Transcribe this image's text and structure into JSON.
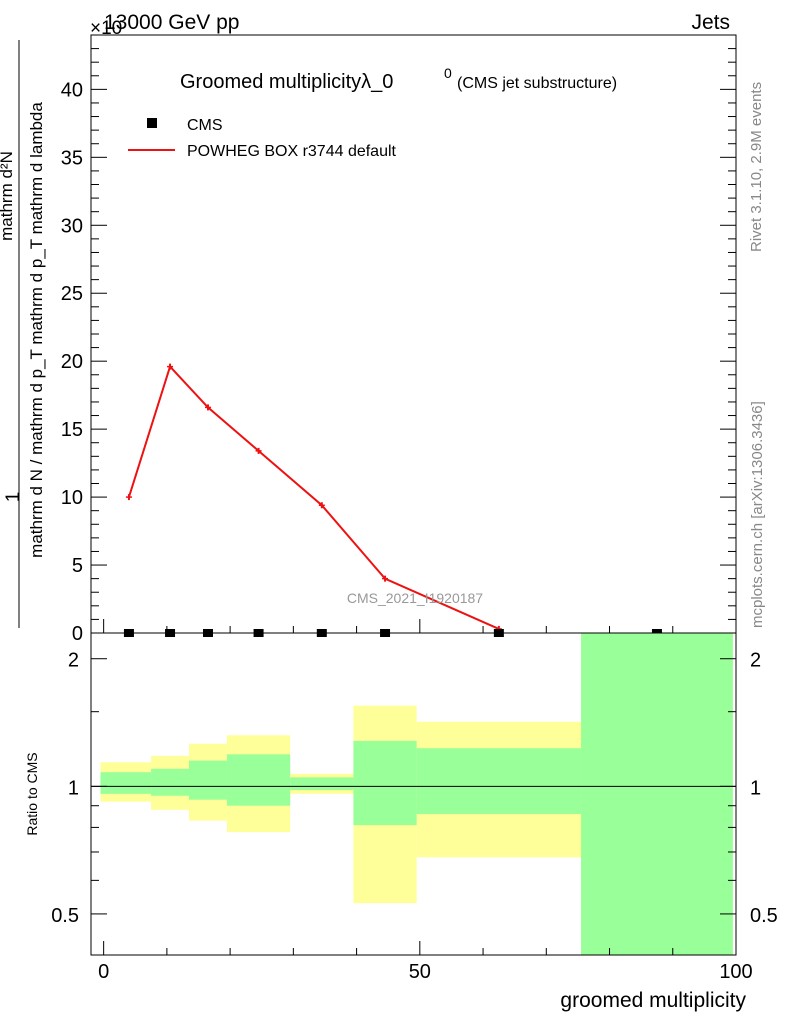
{
  "header": {
    "left": "13000 GeV pp",
    "right": "Jets",
    "exponent": "×10"
  },
  "side_labels": {
    "rivet": "Rivet 3.1.10,  2.9M events",
    "mcplots": "mcplots.cern.ch [arXiv:1306.3436]"
  },
  "colors": {
    "mc_line": "#ee1111",
    "band_inner": "#99ff99",
    "band_outer": "#ffff99",
    "data_marker": "#000000"
  },
  "chart_data": [
    {
      "type": "line",
      "panel": "main",
      "title": "Groomed multiplicityλ_0",
      "title_superscript": "0",
      "subtitle": "(CMS jet substructure)",
      "watermark": "CMS_2021_I1920187",
      "ylabel_numerator": "1",
      "ylabel_fraction_num": "mathrm d²N",
      "ylabel_fraction_den": "mathrm d N / mathrm d p_T mathrm d p_T mathrm d lambda",
      "xlim": [
        -2,
        100
      ],
      "ylim": [
        0,
        44
      ],
      "y_ticks": [
        0,
        5,
        10,
        15,
        20,
        25,
        30,
        35,
        40
      ],
      "y_tick_labels": [
        "0",
        "5",
        "10",
        "15",
        "20",
        "25",
        "30",
        "35",
        "40"
      ],
      "legend": {
        "position": "top-left",
        "entries": [
          "CMS",
          "POWHEG BOX r3744 default"
        ]
      },
      "series": [
        {
          "name": "CMS",
          "kind": "markers",
          "x": [
            4,
            10.5,
            16.5,
            24.5,
            34.5,
            44.5,
            62.5,
            87.5
          ],
          "y": [
            0,
            0,
            0,
            0,
            0,
            0,
            0,
            0
          ]
        },
        {
          "name": "POWHEG BOX r3744 default",
          "kind": "line",
          "x": [
            4,
            10.5,
            16.5,
            24.5,
            34.5,
            44.5,
            62.5
          ],
          "y": [
            10.0,
            19.6,
            16.6,
            13.4,
            9.4,
            4.0,
            0.3
          ]
        }
      ]
    },
    {
      "type": "area",
      "panel": "ratio",
      "ylabel": "Ratio to CMS",
      "xlabel": "groomed multiplicity",
      "xlim": [
        -2,
        100
      ],
      "ylim": [
        0.4,
        2.3
      ],
      "log_y": true,
      "y_ticks": [
        0.5,
        1,
        2
      ],
      "y_tick_labels": [
        "0.5",
        "1",
        "2"
      ],
      "x_ticks": [
        0,
        50,
        100
      ],
      "x_tick_labels": [
        "0",
        "50",
        "100"
      ],
      "bins": [
        {
          "x0": -0.5,
          "x1": 7.5,
          "outer": [
            0.92,
            1.14
          ],
          "inner": [
            0.96,
            1.08
          ]
        },
        {
          "x0": 7.5,
          "x1": 13.5,
          "outer": [
            0.88,
            1.18
          ],
          "inner": [
            0.95,
            1.1
          ]
        },
        {
          "x0": 13.5,
          "x1": 19.5,
          "outer": [
            0.83,
            1.26
          ],
          "inner": [
            0.93,
            1.15
          ]
        },
        {
          "x0": 19.5,
          "x1": 29.5,
          "outer": [
            0.78,
            1.32
          ],
          "inner": [
            0.9,
            1.19
          ]
        },
        {
          "x0": 29.5,
          "x1": 39.5,
          "outer": [
            0.96,
            1.07
          ],
          "inner": [
            0.98,
            1.05
          ]
        },
        {
          "x0": 39.5,
          "x1": 49.5,
          "outer": [
            0.53,
            1.55
          ],
          "inner": [
            0.81,
            1.28
          ]
        },
        {
          "x0": 49.5,
          "x1": 75.5,
          "outer": [
            0.68,
            1.42
          ],
          "inner": [
            0.86,
            1.23
          ]
        },
        {
          "x0": 75.5,
          "x1": 99.5,
          "outer": [
            0.4,
            2.3
          ],
          "inner": [
            0.4,
            2.3
          ]
        }
      ],
      "reference": 1
    }
  ]
}
